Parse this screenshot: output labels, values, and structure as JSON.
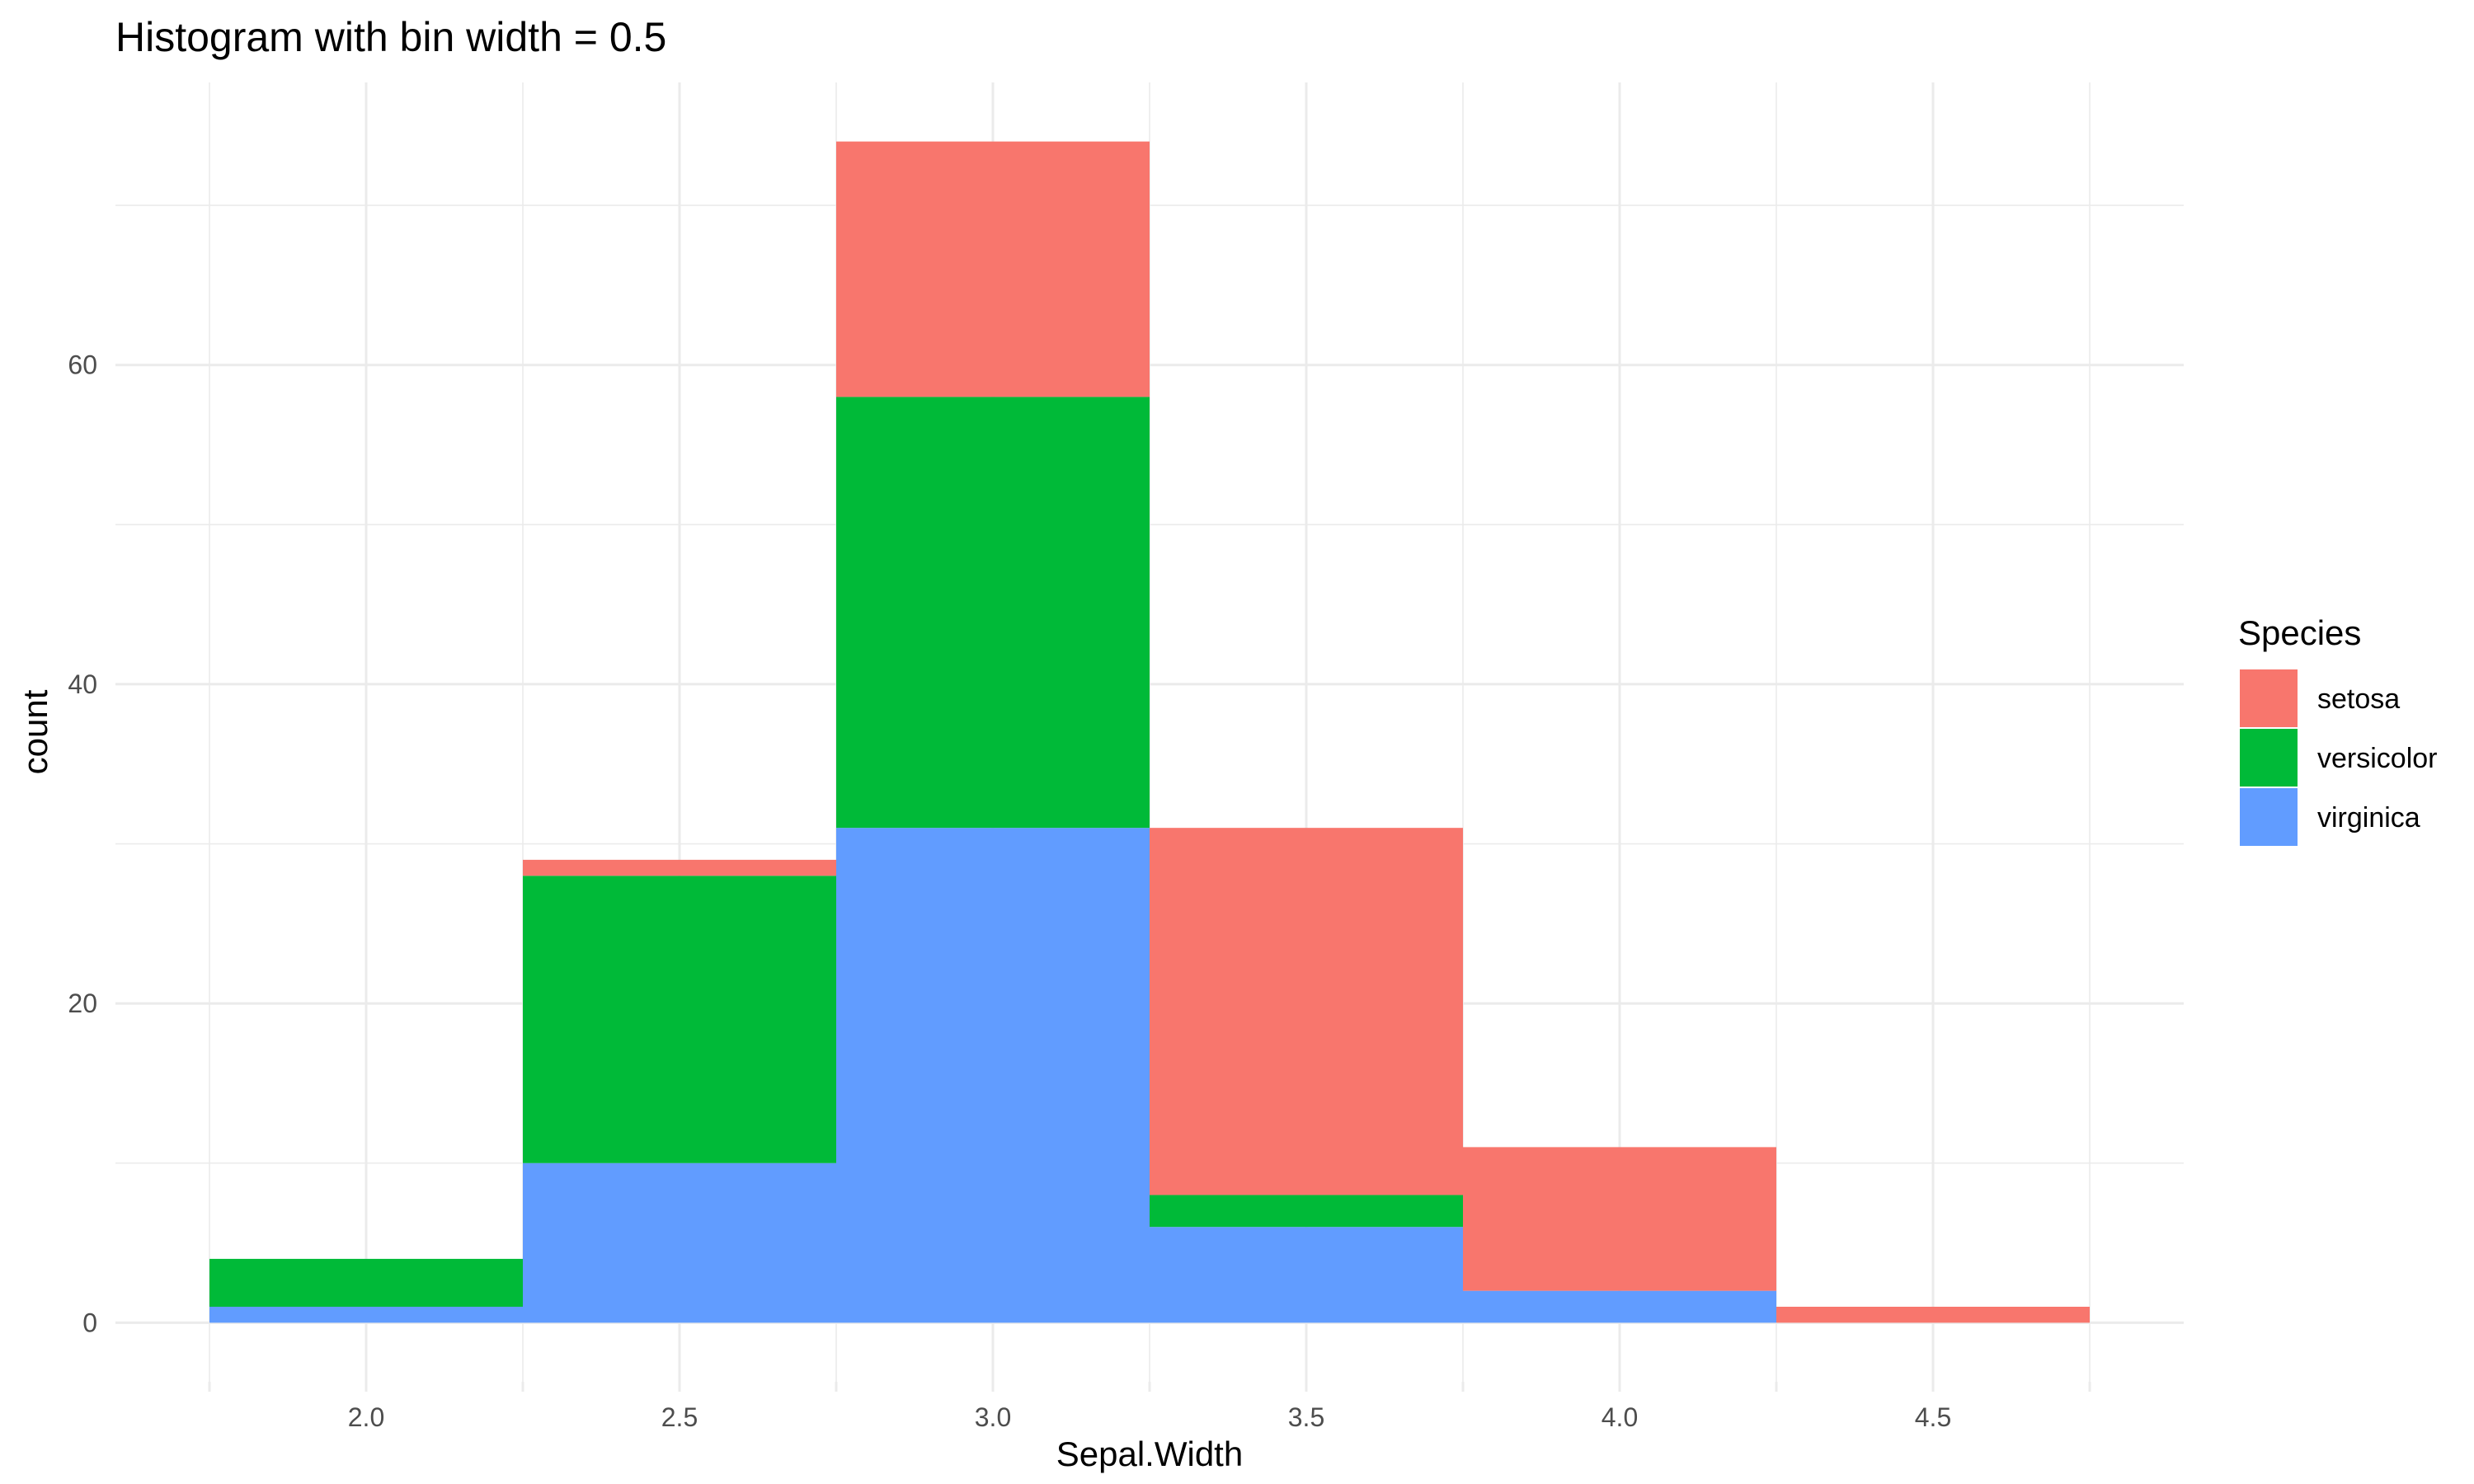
{
  "chart_data": {
    "type": "bar",
    "stacked": true,
    "title": "Histogram with bin width = 0.5",
    "xlabel": "Sepal.Width",
    "ylabel": "count",
    "bins": [
      {
        "center": 2.0,
        "from": 1.75,
        "to": 2.25
      },
      {
        "center": 2.5,
        "from": 2.25,
        "to": 2.75
      },
      {
        "center": 3.0,
        "from": 2.75,
        "to": 3.25
      },
      {
        "center": 3.5,
        "from": 3.25,
        "to": 3.75
      },
      {
        "center": 4.0,
        "from": 3.75,
        "to": 4.25
      },
      {
        "center": 4.5,
        "from": 4.25,
        "to": 4.75
      }
    ],
    "series": [
      {
        "name": "virginica",
        "color": "#619CFF",
        "values": [
          1,
          10,
          31,
          6,
          2,
          0
        ]
      },
      {
        "name": "versicolor",
        "color": "#00BA38",
        "values": [
          3,
          18,
          27,
          2,
          0,
          0
        ]
      },
      {
        "name": "setosa",
        "color": "#F8766D",
        "values": [
          0,
          1,
          16,
          23,
          9,
          1
        ]
      }
    ],
    "x_ticks": [
      "2.0",
      "2.5",
      "3.0",
      "3.5",
      "4.0",
      "4.5"
    ],
    "x_tick_values": [
      2.0,
      2.5,
      3.0,
      3.5,
      4.0,
      4.5
    ],
    "y_ticks": [
      "0",
      "20",
      "40",
      "60"
    ],
    "y_tick_values": [
      0,
      20,
      40,
      60
    ],
    "xlim": [
      1.6,
      4.9
    ],
    "ylim": [
      -3.7,
      77.7
    ],
    "grid": true,
    "legend": {
      "title": "Species",
      "position": "right",
      "entries": [
        {
          "label": "setosa",
          "color": "#F8766D"
        },
        {
          "label": "versicolor",
          "color": "#00BA38"
        },
        {
          "label": "virginica",
          "color": "#619CFF"
        }
      ]
    }
  }
}
